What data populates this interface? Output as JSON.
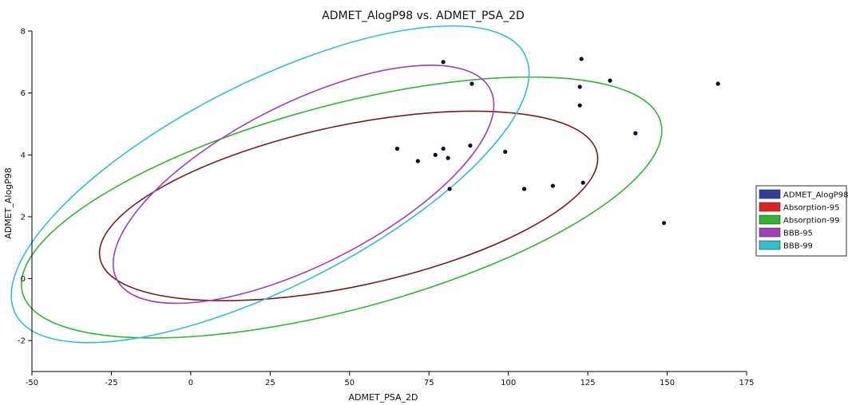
{
  "chart_data": {
    "type": "scatter",
    "title": "ADMET_AlogP98 vs. ADMET_PSA_2D",
    "xlabel": "ADMET_PSA_2D",
    "ylabel": "ADMET_AlogP98",
    "xlim": [
      -50,
      175
    ],
    "ylim": [
      -3,
      8
    ],
    "x_ticks": [
      -50,
      -25,
      0,
      25,
      50,
      75,
      100,
      125,
      150,
      175
    ],
    "y_ticks": [
      -2,
      0,
      2,
      4,
      6,
      8
    ],
    "grid": false,
    "legend_position": "right",
    "colors": {
      "ADMET_AlogP98": "#2b3f9e",
      "Absorption-95": "#e02020",
      "Absorption-99": "#2fb82f",
      "BBB-95": "#a23db5",
      "BBB-99": "#2fc0cf",
      "point": "#0b0b2a",
      "absorption_95_line": "#7a1c1c"
    },
    "series": [
      {
        "name": "ADMET_AlogP98",
        "points": [
          {
            "x": 79.5,
            "y": 7.0
          },
          {
            "x": 88.5,
            "y": 6.3
          },
          {
            "x": 123.0,
            "y": 7.1
          },
          {
            "x": 122.5,
            "y": 6.2
          },
          {
            "x": 132.0,
            "y": 6.4
          },
          {
            "x": 166.0,
            "y": 6.3
          },
          {
            "x": 122.5,
            "y": 5.6
          },
          {
            "x": 140.0,
            "y": 4.7
          },
          {
            "x": 65.0,
            "y": 4.2
          },
          {
            "x": 71.5,
            "y": 3.8
          },
          {
            "x": 77.0,
            "y": 4.0
          },
          {
            "x": 79.5,
            "y": 4.2
          },
          {
            "x": 81.0,
            "y": 3.9
          },
          {
            "x": 88.0,
            "y": 4.3
          },
          {
            "x": 99.0,
            "y": 4.1
          },
          {
            "x": 81.5,
            "y": 2.9
          },
          {
            "x": 105.0,
            "y": 2.9
          },
          {
            "x": 114.0,
            "y": 3.0
          },
          {
            "x": 123.5,
            "y": 3.1
          },
          {
            "x": 149.0,
            "y": 1.8
          }
        ]
      }
    ],
    "ellipses": [
      {
        "name": "Absorption-95",
        "cx": 49.7,
        "cy": 2.35,
        "rx": 80,
        "ry": 2.6,
        "angle": -12
      },
      {
        "name": "Absorption-99",
        "cx": 47.5,
        "cy": 2.3,
        "rx": 104,
        "ry": 3.3,
        "angle": -15
      },
      {
        "name": "BBB-95",
        "cx": 35.5,
        "cy": 3.05,
        "rx": 66,
        "ry": 2.6,
        "angle": -27
      },
      {
        "name": "BBB-99",
        "cx": 25.0,
        "cy": 3.05,
        "rx": 90,
        "ry": 3.3,
        "angle": -27
      }
    ],
    "legend": [
      "ADMET_AlogP98",
      "Absorption-95",
      "Absorption-99",
      "BBB-95",
      "BBB-99"
    ]
  }
}
